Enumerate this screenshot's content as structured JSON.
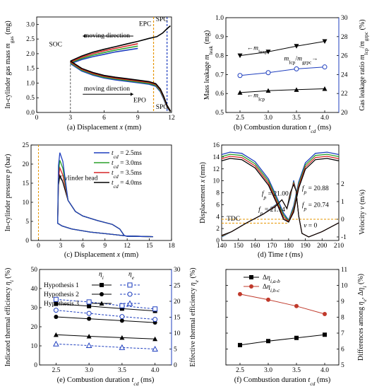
{
  "chart_data": [
    {
      "id": "a",
      "type": "line",
      "caption": "(a) Displacement x (mm)",
      "xlabel": "",
      "ylabel": "In-cylinder gas mass m_gas (mg)",
      "xlim": [
        0,
        12
      ],
      "ylim": [
        0,
        3.25
      ],
      "xticks": [
        "0",
        "3",
        "6",
        "9",
        "12"
      ],
      "yticks": [
        "0.0",
        "0.5",
        "1.0",
        "1.5",
        "2.0",
        "2.5",
        "3.0"
      ],
      "annotations": {
        "soc": "SOC",
        "epc_top": "EPC",
        "spc_top": "SPC",
        "epo": "EPO",
        "spo": "SPO",
        "moving_top": "moving direction",
        "moving_bottom": "moving direction"
      },
      "colors": {
        "epc": "#e69500",
        "spc": "#1f3fbf",
        "soc": "#555555"
      },
      "series": [
        {
          "color": "#000000",
          "upper": [
            [
              3.0,
              1.75
            ],
            [
              4,
              1.92
            ],
            [
              5,
              2.05
            ],
            [
              6,
              2.15
            ],
            [
              7,
              2.24
            ],
            [
              8,
              2.33
            ],
            [
              9,
              2.42
            ],
            [
              10,
              2.52
            ],
            [
              10.7,
              2.58
            ],
            [
              11.2,
              2.7
            ],
            [
              11.6,
              2.85
            ],
            [
              11.9,
              2.95
            ]
          ],
          "lower": [
            [
              3.0,
              1.75
            ],
            [
              4,
              1.5
            ],
            [
              5,
              1.36
            ],
            [
              6,
              1.26
            ],
            [
              7,
              1.2
            ],
            [
              8,
              1.15
            ],
            [
              9,
              1.1
            ],
            [
              10,
              1.05
            ],
            [
              10.6,
              0.98
            ],
            [
              11.0,
              0.8
            ],
            [
              11.3,
              0.55
            ],
            [
              11.6,
              0.25
            ],
            [
              11.9,
              0.05
            ]
          ]
        },
        {
          "color": "#d62728",
          "upper": [
            [
              3.0,
              1.72
            ],
            [
              4,
              1.88
            ],
            [
              5,
              2.0
            ],
            [
              6,
              2.1
            ],
            [
              7,
              2.18
            ],
            [
              8,
              2.26
            ],
            [
              9,
              2.34
            ]
          ],
          "lower": [
            [
              3.0,
              1.72
            ],
            [
              4,
              1.47
            ],
            [
              5,
              1.33
            ],
            [
              6,
              1.23
            ],
            [
              7,
              1.17
            ],
            [
              8,
              1.12
            ],
            [
              9,
              1.07
            ],
            [
              10,
              1.02
            ],
            [
              10.6,
              0.95
            ],
            [
              11.0,
              0.77
            ],
            [
              11.3,
              0.52
            ],
            [
              11.6,
              0.22
            ],
            [
              11.9,
              0.04
            ]
          ]
        },
        {
          "color": "#2ca02c",
          "upper": [
            [
              3.0,
              1.69
            ],
            [
              4,
              1.84
            ],
            [
              5,
              1.95
            ],
            [
              6,
              2.04
            ],
            [
              7,
              2.12
            ],
            [
              8,
              2.19
            ],
            [
              9,
              2.26
            ]
          ],
          "lower": [
            [
              3.0,
              1.69
            ],
            [
              4,
              1.44
            ],
            [
              5,
              1.3
            ],
            [
              6,
              1.2
            ],
            [
              7,
              1.14
            ],
            [
              8,
              1.09
            ],
            [
              9,
              1.04
            ],
            [
              10,
              0.99
            ],
            [
              10.6,
              0.92
            ],
            [
              11.0,
              0.74
            ],
            [
              11.3,
              0.49
            ],
            [
              11.6,
              0.2
            ],
            [
              11.9,
              0.03
            ]
          ]
        },
        {
          "color": "#1f3fbf",
          "upper": [
            [
              3.0,
              1.66
            ],
            [
              4,
              1.8
            ],
            [
              5,
              1.9
            ],
            [
              6,
              1.98
            ],
            [
              7,
              2.06
            ],
            [
              8,
              2.12
            ],
            [
              9,
              2.18
            ]
          ],
          "lower": [
            [
              3.0,
              1.66
            ],
            [
              4,
              1.41
            ],
            [
              5,
              1.27
            ],
            [
              6,
              1.17
            ],
            [
              7,
              1.11
            ],
            [
              8,
              1.06
            ],
            [
              9,
              1.01
            ],
            [
              10,
              0.96
            ],
            [
              10.6,
              0.89
            ],
            [
              11.0,
              0.71
            ],
            [
              11.3,
              0.46
            ],
            [
              11.6,
              0.18
            ],
            [
              11.9,
              0.02
            ]
          ]
        }
      ]
    },
    {
      "id": "b",
      "type": "line",
      "caption": "(b) Combustion duration t_cd (ms)",
      "xlabel": "",
      "ylabel": "Mass leakage m_leak (mg)",
      "ylabel_right": "Gas leakage ratio m_lcp/m_grpc (%)",
      "xlim": [
        2.25,
        4.25
      ],
      "ylim": [
        0.5,
        1.0
      ],
      "ylim_right": [
        20,
        30
      ],
      "xticks": [
        "2.5",
        "3.0",
        "3.5",
        "4.0"
      ],
      "yticks": [
        "0.5",
        "0.6",
        "0.7",
        "0.8",
        "0.9",
        "1.0"
      ],
      "yticks_right": [
        "20",
        "22",
        "24",
        "26",
        "28",
        "30"
      ],
      "x": [
        2.5,
        3.0,
        3.5,
        4.0
      ],
      "series": [
        {
          "name": "m_lexp",
          "values": [
            0.8,
            0.82,
            0.85,
            0.875
          ],
          "axis": "left",
          "marker": "triangle-down",
          "color": "#000000"
        },
        {
          "name": "m_lcp",
          "values": [
            0.605,
            0.615,
            0.62,
            0.625
          ],
          "axis": "left",
          "marker": "triangle-up",
          "color": "#000000"
        },
        {
          "name": "m_lcp/m_grpc",
          "values": [
            23.9,
            24.2,
            24.6,
            24.8
          ],
          "axis": "right",
          "marker": "circle-open",
          "color": "#1f3fbf"
        }
      ]
    },
    {
      "id": "c",
      "type": "line",
      "caption": "(c) Displacement x (mm)",
      "xlabel": "",
      "ylabel": "In-cylinder pressure p (bar)",
      "xlim": [
        -1,
        18
      ],
      "ylim": [
        0,
        25
      ],
      "xticks": [
        "0",
        "3",
        "6",
        "9",
        "12",
        "15",
        "18"
      ],
      "yticks": [
        "0",
        "5",
        "10",
        "15",
        "20",
        "25"
      ],
      "annotation": "Cylinder head",
      "legend_position": "top-right",
      "series": [
        {
          "name": "t_cd = 2.5ms",
          "color": "#1f3fbf",
          "peak": 23.0
        },
        {
          "name": "t_cd = 3.0ms",
          "color": "#2ca02c",
          "peak": 21.0
        },
        {
          "name": "t_cd = 3.5ms",
          "color": "#d62728",
          "peak": 19.0
        },
        {
          "name": "t_cd = 4.0ms",
          "color": "#000000",
          "peak": 17.0
        }
      ]
    },
    {
      "id": "d",
      "type": "line",
      "caption": "(d) Time t (ms)",
      "xlabel": "",
      "ylabel": "Displacement x (mm)",
      "ylabel_right": "Velocity v (m/s)",
      "xlim": [
        140,
        210
      ],
      "ylim": [
        0,
        16
      ],
      "xticks": [
        "140",
        "150",
        "160",
        "170",
        "180",
        "190",
        "200",
        "210"
      ],
      "yticks": [
        "0",
        "2",
        "4",
        "6",
        "8",
        "10",
        "12",
        "14",
        "16"
      ],
      "yticks_right": [
        "-1",
        "0",
        "1",
        "2"
      ],
      "annotations": {
        "tdc": "TDC",
        "fp1": "f_p = 21.00",
        "fp2": "f_p = 20.88",
        "fp3": "f_p = 21.14",
        "fp4": "f_p = 20.74",
        "v0": "v = 0"
      }
    },
    {
      "id": "e",
      "type": "line",
      "caption": "(e) Combustion duration t_cd (ms)",
      "xlabel": "",
      "ylabel": "Indicated thermal efficiency η_i (%)",
      "ylabel_right": "Effective thermal efficiency η_e (%)",
      "xlim": [
        2.25,
        4.25
      ],
      "ylim": [
        0,
        50
      ],
      "ylim_right": [
        0,
        30
      ],
      "xticks": [
        "2.5",
        "3.0",
        "3.5",
        "4.0"
      ],
      "yticks": [
        "0",
        "10",
        "20",
        "30",
        "40",
        "50"
      ],
      "yticks_right": [
        "0",
        "5",
        "10",
        "15",
        "20",
        "25",
        "30"
      ],
      "x": [
        2.5,
        3.0,
        3.5,
        4.0
      ],
      "legend": {
        "eta_i": "η_i",
        "eta_e": "η_e",
        "h1": "Hypothesis 1",
        "h2": "Hypothesis 2",
        "h3": "Hypothesis 3"
      },
      "series": [
        {
          "name": "Hypothesis 1 η_i",
          "values": [
            32.0,
            30.8,
            29.5,
            28.3
          ],
          "axis": "left",
          "marker": "square",
          "color": "#000000"
        },
        {
          "name": "Hypothesis 2 η_i",
          "values": [
            25.2,
            24.2,
            23.2,
            22.2
          ],
          "axis": "left",
          "marker": "circle",
          "color": "#000000"
        },
        {
          "name": "Hypothesis 3 η_i",
          "values": [
            15.8,
            15.0,
            14.3,
            13.6
          ],
          "axis": "left",
          "marker": "triangle-up",
          "color": "#000000"
        },
        {
          "name": "Hypothesis 1 η_e",
          "values": [
            20.6,
            19.8,
            18.6,
            17.6
          ],
          "axis": "right",
          "marker": "square-open",
          "color": "#1f3fbf"
        },
        {
          "name": "Hypothesis 2 η_e",
          "values": [
            17.2,
            16.2,
            15.2,
            14.3
          ],
          "axis": "right",
          "marker": "circle-open",
          "color": "#1f3fbf"
        },
        {
          "name": "Hypothesis 3 η_e",
          "values": [
            6.6,
            6.1,
            5.5,
            5.0
          ],
          "axis": "right",
          "marker": "triangle-open",
          "color": "#1f3fbf"
        }
      ]
    },
    {
      "id": "f",
      "type": "line",
      "caption": "(f) Combustion duration t_cd (ms)",
      "xlabel": "",
      "ylabel": "Differences among η_e, Δη_i (%)",
      "xlim": [
        2.25,
        4.25
      ],
      "ylim": [
        5,
        11
      ],
      "xticks": [
        "2.5",
        "3.0",
        "3.5",
        "4.0"
      ],
      "yticks": [
        "5",
        "6",
        "7",
        "8",
        "9",
        "10",
        "11"
      ],
      "x": [
        2.5,
        3.0,
        3.5,
        4.0
      ],
      "series": [
        {
          "name": "Δη_i,a-b",
          "values": [
            6.25,
            6.5,
            6.7,
            6.9
          ],
          "marker": "square",
          "color": "#000000"
        },
        {
          "name": "Δη_i,b-c",
          "values": [
            9.45,
            9.1,
            8.7,
            8.2
          ],
          "marker": "circle",
          "color": "#c0392b"
        }
      ]
    }
  ]
}
